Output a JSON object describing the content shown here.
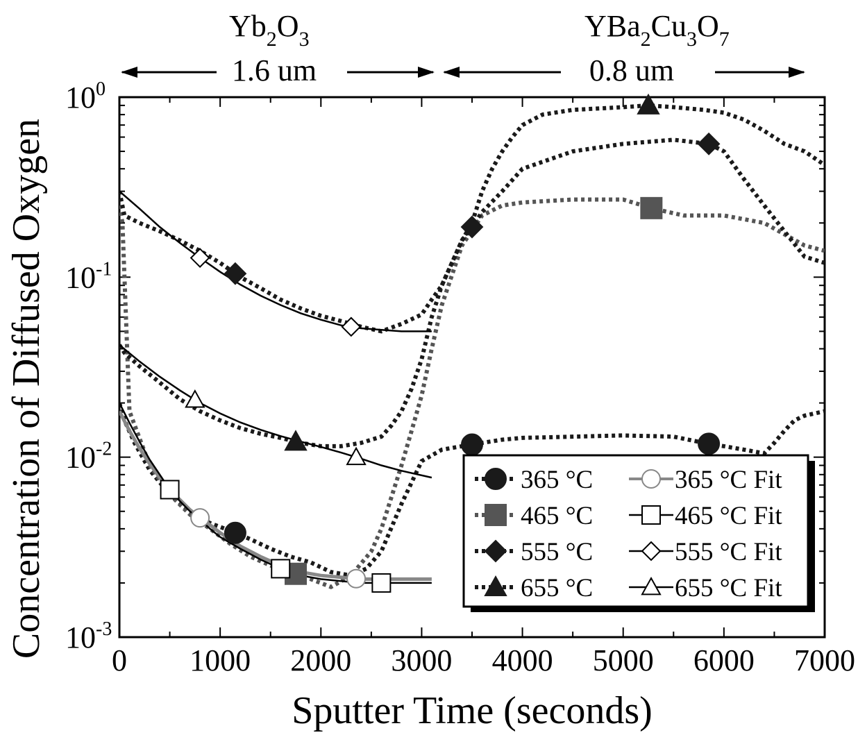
{
  "chart_data": {
    "type": "line",
    "xlabel": "Sputter Time (seconds)",
    "ylabel": "Concentration of Diffused Oxygen",
    "xlim": [
      0,
      7000
    ],
    "ylim": [
      0.001,
      1
    ],
    "yscale": "log",
    "x_ticks": [
      0,
      1000,
      2000,
      3000,
      4000,
      5000,
      6000,
      7000
    ],
    "x_tick_labels": [
      "0",
      "1000",
      "2000",
      "3000",
      "4000",
      "5000",
      "6000",
      "7000"
    ],
    "y_ticks": [
      0.001,
      0.01,
      0.1,
      1
    ],
    "y_tick_labels": [
      {
        "base": "10",
        "exp": "-3"
      },
      {
        "base": "10",
        "exp": "-2"
      },
      {
        "base": "10",
        "exp": "-1"
      },
      {
        "base": "10",
        "exp": "0"
      }
    ],
    "legend_position": "bottom-right",
    "annotations": {
      "left_region": {
        "label": "Yb",
        "sub1": "2",
        "mid": "O",
        "sub2": "3",
        "thickness": "1.6 um",
        "x_range": [
          0,
          3100
        ]
      },
      "right_region": {
        "label": "YBa",
        "sub1": "2",
        "mid1": "Cu",
        "sub2": "3",
        "mid2": "O",
        "sub3": "7",
        "thickness": "0.8 um",
        "x_range": [
          3100,
          7000
        ]
      }
    },
    "series": [
      {
        "name": "365 °C",
        "style": "dotted",
        "marker": "filled-circle",
        "color": "#1a1a1a",
        "x": [
          0,
          50,
          150,
          300,
          500,
          700,
          900,
          1100,
          1300,
          1500,
          1700,
          1900,
          2100,
          2300,
          2450,
          2600,
          2800,
          3000,
          3200,
          3400,
          3600,
          3800,
          4000,
          4500,
          5000,
          5500,
          5800,
          6000,
          6200,
          6400,
          6500,
          6600,
          6700,
          6800,
          7000
        ],
        "y": [
          0.02,
          0.016,
          0.012,
          0.0085,
          0.0062,
          0.005,
          0.0043,
          0.0039,
          0.0035,
          0.0031,
          0.0028,
          0.0026,
          0.0023,
          0.0022,
          0.0024,
          0.003,
          0.0055,
          0.0095,
          0.011,
          0.0115,
          0.012,
          0.0125,
          0.0128,
          0.013,
          0.0132,
          0.013,
          0.012,
          0.0115,
          0.011,
          0.0105,
          0.012,
          0.014,
          0.016,
          0.017,
          0.018
        ],
        "marker_x": [
          1150,
          3500,
          5850
        ]
      },
      {
        "name": "465 °C",
        "style": "dotted",
        "marker": "filled-square",
        "color": "#555555",
        "x": [
          0,
          30,
          100,
          300,
          500,
          700,
          900,
          1100,
          1300,
          1500,
          1700,
          1900,
          2100,
          2300,
          2500,
          2600,
          2700,
          2800,
          2900,
          3000,
          3100,
          3200,
          3400,
          3600,
          3800,
          4000,
          4500,
          5000,
          5300,
          5600,
          6000,
          6400,
          6800,
          7000
        ],
        "y": [
          0.25,
          0.2,
          0.018,
          0.009,
          0.0062,
          0.0048,
          0.004,
          0.0033,
          0.0028,
          0.0025,
          0.0023,
          0.0021,
          0.0019,
          0.0022,
          0.003,
          0.004,
          0.006,
          0.009,
          0.014,
          0.022,
          0.04,
          0.07,
          0.15,
          0.22,
          0.25,
          0.26,
          0.27,
          0.27,
          0.24,
          0.22,
          0.22,
          0.2,
          0.15,
          0.14
        ],
        "marker_x": [
          1750,
          5280
        ]
      },
      {
        "name": "555 °C",
        "style": "dotted",
        "marker": "filled-diamond",
        "color": "#1a1a1a",
        "x": [
          0,
          50,
          200,
          400,
          600,
          800,
          1000,
          1200,
          1400,
          1600,
          1800,
          2000,
          2200,
          2400,
          2600,
          2800,
          3000,
          3100,
          3200,
          3300,
          3400,
          3500,
          3600,
          3800,
          4000,
          4500,
          5000,
          5500,
          5850,
          6000,
          6200,
          6400,
          6600,
          6800,
          7000
        ],
        "y": [
          0.3,
          0.22,
          0.2,
          0.18,
          0.16,
          0.14,
          0.12,
          0.1,
          0.087,
          0.075,
          0.067,
          0.061,
          0.057,
          0.053,
          0.05,
          0.055,
          0.062,
          0.075,
          0.09,
          0.12,
          0.16,
          0.19,
          0.23,
          0.3,
          0.4,
          0.5,
          0.55,
          0.58,
          0.55,
          0.5,
          0.35,
          0.25,
          0.18,
          0.13,
          0.12
        ],
        "marker_x": [
          1150,
          3500,
          5850
        ]
      },
      {
        "name": "655 °C",
        "style": "dotted",
        "marker": "filled-triangle",
        "color": "#1a1a1a",
        "x": [
          0,
          50,
          200,
          400,
          600,
          800,
          1000,
          1200,
          1400,
          1600,
          1800,
          2000,
          2200,
          2400,
          2600,
          2700,
          2800,
          2900,
          3000,
          3100,
          3200,
          3300,
          3400,
          3500,
          3600,
          3700,
          3800,
          3900,
          4000,
          4200,
          4500,
          5000,
          5250,
          5500,
          5800,
          6000,
          6200,
          6400,
          6600,
          6800,
          7000
        ],
        "y": [
          0.042,
          0.038,
          0.032,
          0.026,
          0.021,
          0.018,
          0.016,
          0.0145,
          0.0135,
          0.0128,
          0.012,
          0.0115,
          0.0115,
          0.012,
          0.013,
          0.015,
          0.018,
          0.024,
          0.035,
          0.06,
          0.09,
          0.12,
          0.16,
          0.2,
          0.3,
          0.4,
          0.5,
          0.6,
          0.7,
          0.8,
          0.85,
          0.88,
          0.9,
          0.88,
          0.85,
          0.82,
          0.75,
          0.65,
          0.55,
          0.5,
          0.42
        ],
        "marker_x": [
          1750,
          5250
        ]
      },
      {
        "name": "365 °C Fit",
        "style": "solid",
        "marker": "open-circle",
        "color": "#888888",
        "x": [
          0,
          100,
          200,
          300,
          400,
          500,
          600,
          700,
          800,
          900,
          1000,
          1200,
          1400,
          1600,
          1800,
          2000,
          2200,
          2400,
          2600,
          2800,
          3100
        ],
        "y": [
          0.018,
          0.014,
          0.0112,
          0.0092,
          0.0077,
          0.0066,
          0.0058,
          0.0051,
          0.0046,
          0.0042,
          0.0038,
          0.0032,
          0.0028,
          0.0025,
          0.0023,
          0.0022,
          0.00215,
          0.0021,
          0.0021,
          0.0021,
          0.0021
        ],
        "marker_x": [
          800,
          2350
        ]
      },
      {
        "name": "465 °C Fit",
        "style": "solid",
        "marker": "open-square",
        "color": "#000000",
        "x": [
          0,
          100,
          200,
          300,
          400,
          500,
          600,
          700,
          800,
          900,
          1000,
          1200,
          1400,
          1600,
          1800,
          2000,
          2200,
          2400,
          2600,
          2800,
          3100
        ],
        "y": [
          0.02,
          0.0155,
          0.0122,
          0.0097,
          0.008,
          0.0066,
          0.0057,
          0.005,
          0.0045,
          0.004,
          0.0036,
          0.0031,
          0.0027,
          0.0024,
          0.0022,
          0.0021,
          0.00205,
          0.002,
          0.002,
          0.002,
          0.002
        ],
        "marker_x": [
          500,
          1600,
          2600
        ]
      },
      {
        "name": "555 °C Fit",
        "style": "solid",
        "marker": "open-diamond",
        "color": "#000000",
        "x": [
          0,
          200,
          400,
          600,
          800,
          1000,
          1200,
          1400,
          1600,
          1800,
          2000,
          2200,
          2400,
          2600,
          2800,
          3100
        ],
        "y": [
          0.3,
          0.24,
          0.19,
          0.155,
          0.128,
          0.107,
          0.091,
          0.079,
          0.07,
          0.063,
          0.058,
          0.054,
          0.052,
          0.051,
          0.05,
          0.05
        ],
        "marker_x": [
          800,
          2300
        ]
      },
      {
        "name": "655 °C Fit",
        "style": "solid",
        "marker": "open-triangle",
        "color": "#000000",
        "x": [
          0,
          200,
          400,
          600,
          800,
          1000,
          1200,
          1400,
          1600,
          1800,
          2000,
          2200,
          2400,
          2600,
          2800,
          3100
        ],
        "y": [
          0.042,
          0.034,
          0.028,
          0.0235,
          0.02,
          0.0175,
          0.0156,
          0.0142,
          0.0131,
          0.0122,
          0.0114,
          0.0106,
          0.0098,
          0.009,
          0.0084,
          0.0077
        ],
        "marker_x": [
          750,
          2350
        ]
      }
    ]
  }
}
